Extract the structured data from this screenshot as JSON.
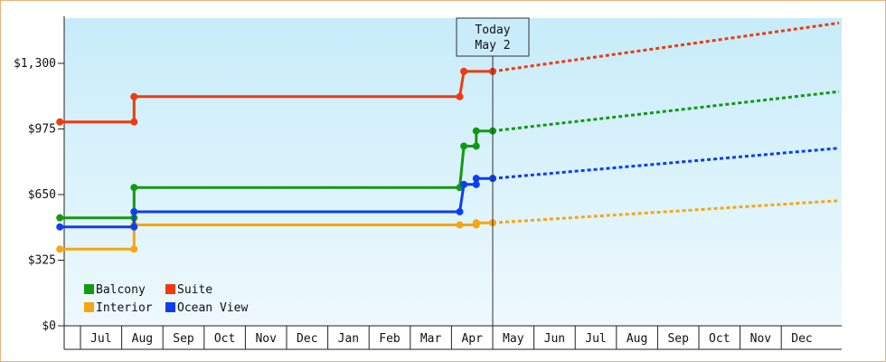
{
  "chart_data": {
    "type": "line",
    "title": "",
    "xlabel": "",
    "ylabel": "",
    "ylim": [
      0,
      1400
    ],
    "y_ticks": [
      {
        "value": 0,
        "label": "$0"
      },
      {
        "value": 325,
        "label": "$325"
      },
      {
        "value": 650,
        "label": "$650"
      },
      {
        "value": 975,
        "label": "$975"
      },
      {
        "value": 1300,
        "label": "$1,300"
      }
    ],
    "x_months": [
      "Jul",
      "Aug",
      "Sep",
      "Oct",
      "Nov",
      "Dec",
      "Jan",
      "Feb",
      "Mar",
      "Apr",
      "May",
      "Jun",
      "Jul",
      "Aug",
      "Sep",
      "Oct",
      "Nov",
      "Dec"
    ],
    "today_marker": {
      "line1": "Today",
      "line2": "May 2",
      "month_index": 10.0
    },
    "grid": false,
    "legend_position": "bottom-left",
    "series": [
      {
        "name": "Balcony",
        "color": "#129a12",
        "history": [
          [
            -0.5,
            535
          ],
          [
            1.3,
            535
          ],
          [
            1.3,
            685
          ],
          [
            9.2,
            685
          ],
          [
            9.3,
            890
          ],
          [
            9.6,
            890
          ],
          [
            9.6,
            965
          ],
          [
            10.0,
            965
          ]
        ],
        "markers": [
          [
            -0.5,
            535
          ],
          [
            1.3,
            535
          ],
          [
            1.3,
            685
          ],
          [
            9.2,
            685
          ],
          [
            9.3,
            890
          ],
          [
            9.6,
            890
          ],
          [
            9.6,
            965
          ],
          [
            10.0,
            965
          ]
        ],
        "forecast": [
          [
            10.0,
            965
          ],
          [
            18.4,
            1160
          ]
        ]
      },
      {
        "name": "Suite",
        "color": "#ee3a10",
        "history": [
          [
            -0.5,
            1010
          ],
          [
            1.3,
            1010
          ],
          [
            1.3,
            1135
          ],
          [
            9.2,
            1135
          ],
          [
            9.3,
            1260
          ],
          [
            10.0,
            1260
          ]
        ],
        "markers": [
          [
            -0.5,
            1010
          ],
          [
            1.3,
            1010
          ],
          [
            1.3,
            1135
          ],
          [
            9.2,
            1135
          ],
          [
            9.3,
            1260
          ],
          [
            10.0,
            1260
          ]
        ],
        "forecast": [
          [
            10.0,
            1260
          ],
          [
            18.4,
            1500
          ]
        ]
      },
      {
        "name": "Interior",
        "color": "#f5a612",
        "history": [
          [
            -0.5,
            380
          ],
          [
            1.3,
            380
          ],
          [
            1.3,
            500
          ],
          [
            9.2,
            500
          ],
          [
            9.6,
            500
          ],
          [
            9.6,
            510
          ],
          [
            10.0,
            510
          ]
        ],
        "markers": [
          [
            -0.5,
            380
          ],
          [
            1.3,
            380
          ],
          [
            1.3,
            500
          ],
          [
            9.2,
            500
          ],
          [
            9.6,
            500
          ],
          [
            9.6,
            510
          ],
          [
            10.0,
            510
          ]
        ],
        "forecast": [
          [
            10.0,
            510
          ],
          [
            18.4,
            620
          ]
        ]
      },
      {
        "name": "Ocean View",
        "color": "#0d3ef0",
        "history": [
          [
            -0.5,
            490
          ],
          [
            1.3,
            490
          ],
          [
            1.3,
            565
          ],
          [
            9.2,
            565
          ],
          [
            9.3,
            700
          ],
          [
            9.6,
            700
          ],
          [
            9.6,
            730
          ],
          [
            10.0,
            730
          ]
        ],
        "markers": [
          [
            -0.5,
            490
          ],
          [
            1.3,
            490
          ],
          [
            1.3,
            565
          ],
          [
            9.2,
            565
          ],
          [
            9.3,
            700
          ],
          [
            9.6,
            700
          ],
          [
            9.6,
            730
          ],
          [
            10.0,
            730
          ]
        ],
        "forecast": [
          [
            10.0,
            730
          ],
          [
            18.4,
            880
          ]
        ]
      }
    ]
  }
}
